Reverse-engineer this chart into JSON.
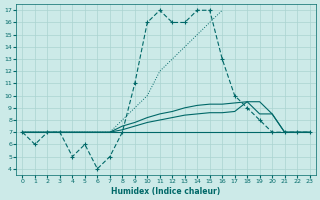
{
  "xlabel": "Humidex (Indice chaleur)",
  "bg_color": "#cceae8",
  "grid_color": "#aad4d0",
  "line_color": "#006868",
  "xlim": [
    -0.5,
    23.5
  ],
  "ylim": [
    3.5,
    17.5
  ],
  "xticks": [
    0,
    1,
    2,
    3,
    4,
    5,
    6,
    7,
    8,
    9,
    10,
    11,
    12,
    13,
    14,
    15,
    16,
    17,
    18,
    19,
    20,
    21,
    22,
    23
  ],
  "yticks": [
    4,
    5,
    6,
    7,
    8,
    9,
    10,
    11,
    12,
    13,
    14,
    15,
    16,
    17
  ],
  "series_main": {
    "x": [
      0,
      1,
      2,
      3,
      4,
      5,
      6,
      7,
      8,
      9,
      10,
      11,
      12,
      13,
      14,
      15,
      16,
      17,
      18,
      19,
      20,
      21,
      22,
      23
    ],
    "y": [
      7,
      6,
      7,
      7,
      5,
      6,
      4,
      5,
      7,
      11,
      16,
      17,
      16,
      16,
      17,
      17,
      13,
      10,
      9,
      8,
      7,
      7,
      7,
      7
    ]
  },
  "series_flat1": {
    "x": [
      0,
      1,
      2,
      3,
      4,
      5,
      6,
      7,
      8,
      9,
      10,
      11,
      12,
      13,
      14,
      15,
      16,
      17,
      18,
      19,
      20,
      21,
      22,
      23
    ],
    "y": [
      7,
      7,
      7,
      7,
      7,
      7,
      7,
      7,
      7,
      7,
      7,
      7,
      7,
      7,
      7,
      7,
      7,
      7,
      7,
      7,
      7,
      7,
      7,
      7
    ]
  },
  "series_rising1": {
    "x": [
      0,
      2,
      3,
      4,
      5,
      6,
      7,
      8,
      9,
      10,
      11,
      12,
      13,
      14,
      15,
      16,
      17,
      18,
      19,
      20,
      21,
      22,
      23
    ],
    "y": [
      7,
      7,
      7,
      7,
      7,
      7,
      7,
      7.2,
      7.5,
      7.8,
      8.0,
      8.2,
      8.4,
      8.5,
      8.6,
      8.6,
      8.7,
      9.5,
      8.5,
      8.5,
      7,
      7,
      7
    ]
  },
  "series_rising2": {
    "x": [
      0,
      2,
      3,
      4,
      5,
      6,
      7,
      8,
      9,
      10,
      11,
      12,
      13,
      14,
      15,
      16,
      17,
      18,
      19,
      20,
      21,
      22,
      23
    ],
    "y": [
      7,
      7,
      7,
      7,
      7,
      7,
      7,
      7.5,
      7.8,
      8.2,
      8.5,
      8.7,
      9.0,
      9.2,
      9.3,
      9.3,
      9.4,
      9.5,
      9.5,
      8.5,
      7,
      7,
      7
    ]
  },
  "series_dotted": {
    "x": [
      0,
      2,
      3,
      4,
      5,
      6,
      7,
      8,
      9,
      10,
      11,
      12,
      13,
      14,
      15,
      16
    ],
    "y": [
      7,
      7,
      7,
      7,
      7,
      7,
      7,
      8,
      9,
      10,
      12,
      13,
      14,
      15,
      16,
      17
    ]
  }
}
